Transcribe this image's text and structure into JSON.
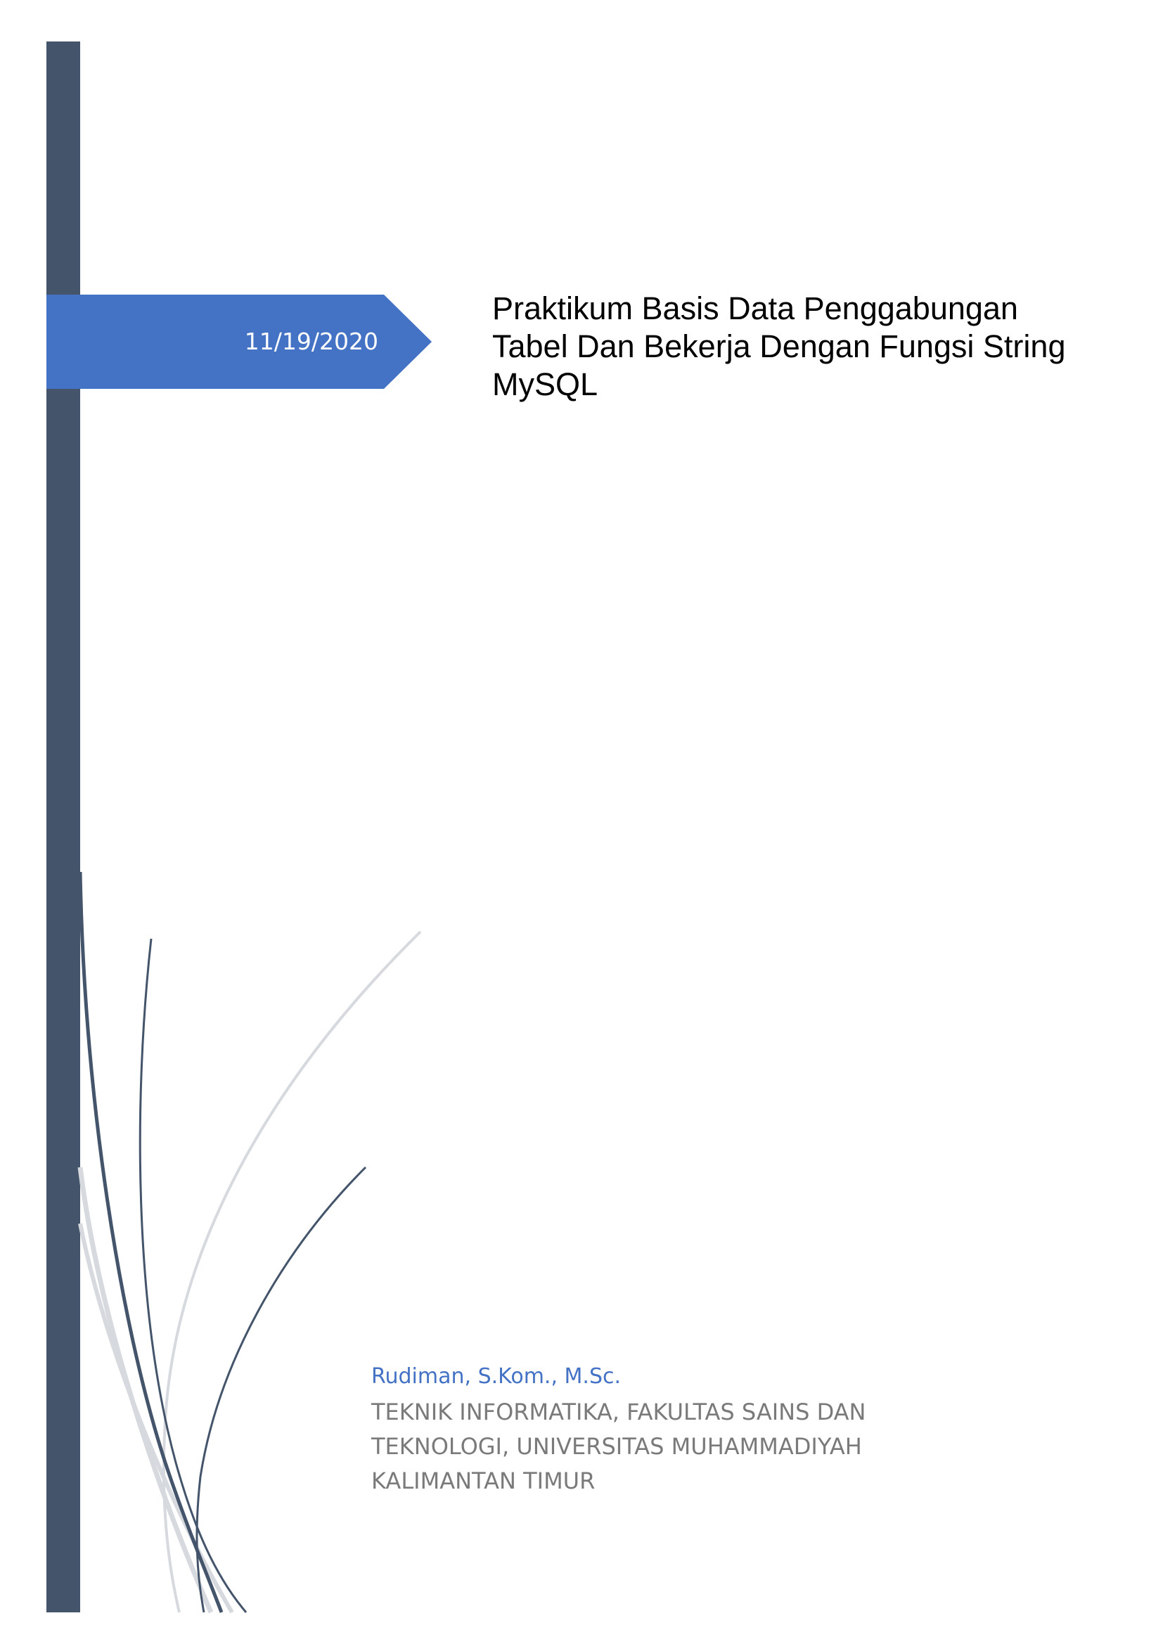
{
  "cover": {
    "date": "11/19/2020",
    "title": "Praktikum Basis Data Penggabungan Tabel Dan Bekerja Dengan Fungsi String MySQL",
    "author": "Rudiman, S.Kom., M.Sc.",
    "institution": "TEKNIK INFORMATIKA, FAKULTAS SAINS DAN TEKNOLOGI, UNIVERSITAS MUHAMMADIYAH KALIMANTAN TIMUR"
  },
  "colors": {
    "sidebar": "#44546a",
    "banner": "#4472c4",
    "author": "#4472c4",
    "institution": "#7a7a7a",
    "curve_dark": "#44546a",
    "curve_light": "#d6d9de"
  }
}
